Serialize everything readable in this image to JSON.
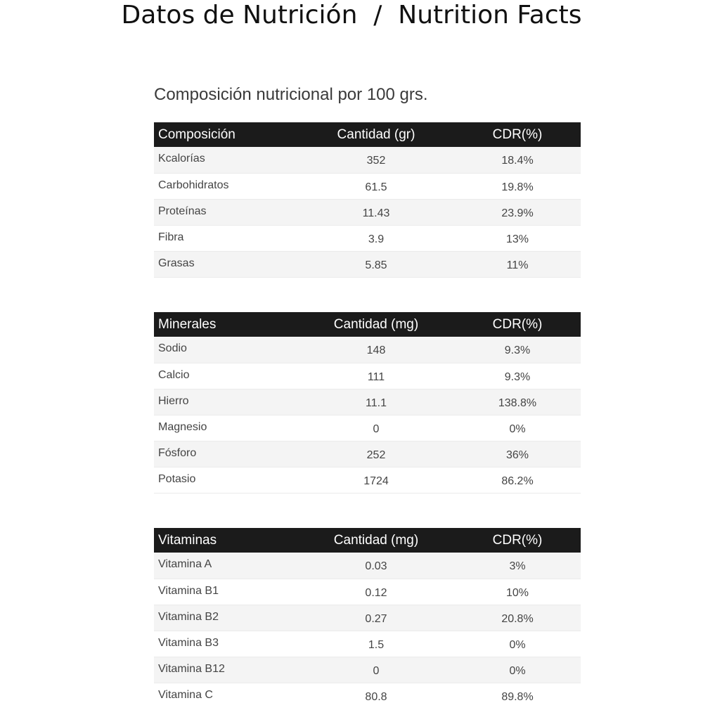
{
  "title": "Datos de Nutrición  /  Nutrition Facts",
  "subtitle": "Composición nutricional por 100 grs.",
  "tables": [
    {
      "headers": [
        "Composición",
        "Cantidad (gr)",
        "CDR(%)"
      ],
      "rows": [
        [
          "Kcalorías",
          "352",
          "18.4%"
        ],
        [
          "Carbohidratos",
          "61.5",
          "19.8%"
        ],
        [
          "Proteínas",
          "11.43",
          "23.9%"
        ],
        [
          "Fibra",
          "3.9",
          "13%"
        ],
        [
          "Grasas",
          "5.85",
          "11%"
        ]
      ]
    },
    {
      "headers": [
        "Minerales",
        "Cantidad (mg)",
        "CDR(%)"
      ],
      "rows": [
        [
          "Sodio",
          "148",
          "9.3%"
        ],
        [
          "Calcio",
          "111",
          "9.3%"
        ],
        [
          "Hierro",
          "11.1",
          "138.8%"
        ],
        [
          "Magnesio",
          "0",
          "0%"
        ],
        [
          "Fósforo",
          "252",
          "36%"
        ],
        [
          "Potasio",
          "1724",
          "86.2%"
        ]
      ]
    },
    {
      "headers": [
        "Vitaminas",
        "Cantidad (mg)",
        "CDR(%)"
      ],
      "rows": [
        [
          "Vitamina A",
          "0.03",
          "3%"
        ],
        [
          "Vitamina B1",
          "0.12",
          "10%"
        ],
        [
          "Vitamina B2",
          "0.27",
          "20.8%"
        ],
        [
          "Vitamina B3",
          "1.5",
          "0%"
        ],
        [
          "Vitamina B12",
          "0",
          "0%"
        ],
        [
          "Vitamina C",
          "80.8",
          "89.8%"
        ]
      ]
    }
  ]
}
